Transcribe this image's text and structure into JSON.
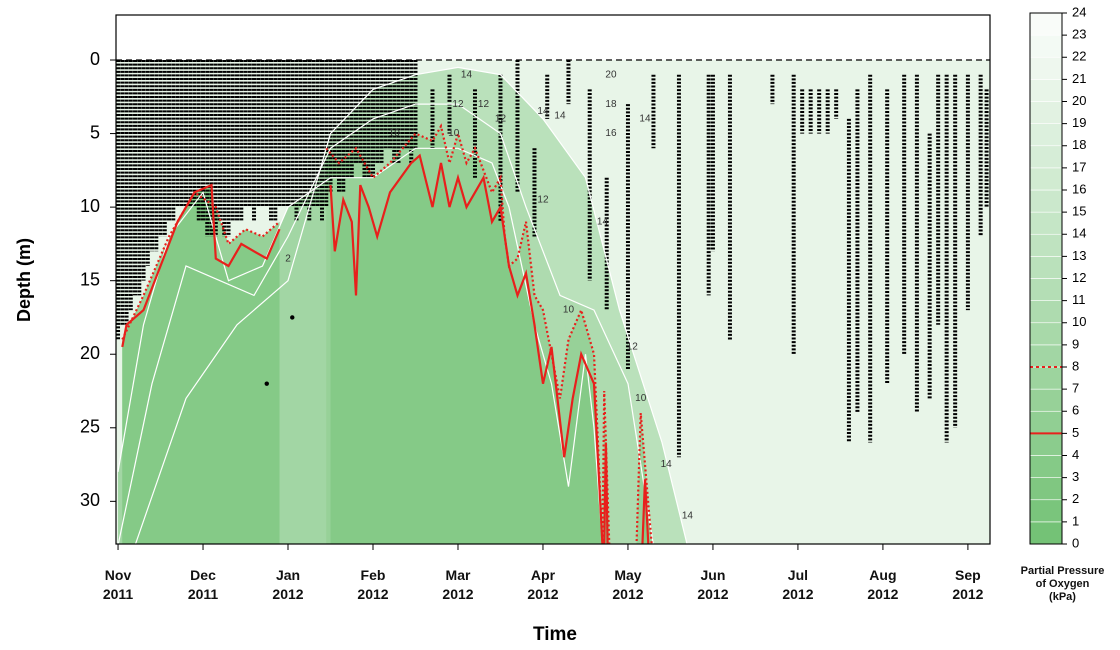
{
  "chart_data": {
    "type": "contour",
    "x_label": "Time",
    "y_label": "Depth (m)",
    "colorbar_label": "Partial Pressure\nof Oxygen\n(kPa)",
    "xlim": [
      -0.024,
      10.26
    ],
    "xticks": [
      {
        "value": 0,
        "label": "Nov\n2011"
      },
      {
        "value": 1,
        "label": "Dec\n2011"
      },
      {
        "value": 2,
        "label": "Jan\n2012"
      },
      {
        "value": 3,
        "label": "Feb\n2012"
      },
      {
        "value": 4,
        "label": "Mar\n2012"
      },
      {
        "value": 5,
        "label": "Apr\n2012"
      },
      {
        "value": 6,
        "label": "May\n2012"
      },
      {
        "value": 7,
        "label": "Jun\n2012"
      },
      {
        "value": 8,
        "label": "Jul\n2012"
      },
      {
        "value": 9,
        "label": "Aug\n2012"
      },
      {
        "value": 10,
        "label": "Sep\n2012"
      }
    ],
    "ylim": [
      -3.06,
      32.9
    ],
    "y_inverted": true,
    "yticks": [
      0,
      5,
      10,
      15,
      20,
      25,
      30
    ],
    "surface_line": 0,
    "colorbar_lim": [
      0,
      24
    ],
    "colorbar_ticks": [
      0,
      1,
      2,
      3,
      4,
      5,
      6,
      7,
      8,
      9,
      10,
      11,
      12,
      13,
      14,
      15,
      16,
      17,
      18,
      19,
      20,
      21,
      22,
      23,
      24
    ],
    "colorscale": {
      "low": "#74c276",
      "high": "#ffffff"
    },
    "background_level": 20,
    "series": [
      {
        "level": 14,
        "color": "#ffffff",
        "style": "solid",
        "x": [
          0.0,
          0.2,
          0.8,
          1.4,
          2.0,
          2.5,
          3.0,
          3.5,
          4.0,
          4.5,
          5.0,
          5.5,
          5.9,
          6.4,
          6.7
        ],
        "values": [
          33,
          33,
          23,
          18,
          15,
          5,
          2,
          1,
          0.5,
          1,
          4,
          8,
          17,
          26,
          33
        ]
      },
      {
        "level": 12,
        "color": "#ffffff",
        "style": "solid",
        "x": [
          0.0,
          0.4,
          0.8,
          1.2,
          1.6,
          2.0,
          2.5,
          3.0,
          3.5,
          4.0,
          4.5,
          4.8,
          5.2,
          5.6,
          6.0,
          6.3
        ],
        "values": [
          33,
          22,
          14,
          15,
          16,
          12,
          6,
          4,
          3,
          3,
          5,
          10,
          16,
          17,
          22,
          33
        ]
      },
      {
        "level": 10,
        "color": "#ffffff",
        "style": "solid",
        "x": [
          0.0,
          0.3,
          0.6,
          1.0,
          1.3,
          1.7,
          2.0,
          2.5,
          3.0,
          3.5,
          4.0,
          4.4,
          4.6,
          4.9,
          5.1,
          5.3,
          5.5,
          5.6,
          5.7
        ],
        "values": [
          28,
          18,
          12,
          9,
          15,
          14,
          10,
          8,
          8,
          6,
          6,
          7,
          10,
          18,
          22,
          29,
          20,
          25,
          33
        ]
      },
      {
        "level": 8,
        "color": "#e8201c",
        "style": "dotted",
        "x": [
          0.05,
          0.3,
          0.6,
          0.9,
          1.15,
          1.3,
          1.5,
          1.7,
          1.9,
          null,
          2.45,
          2.6,
          2.8,
          3.0,
          3.2,
          3.5,
          3.7,
          3.8,
          3.9,
          4.0,
          4.1,
          4.2,
          4.4,
          4.5,
          4.55,
          4.6,
          4.7,
          4.8,
          4.9,
          5.0,
          5.1,
          5.2,
          5.3,
          5.45,
          5.6,
          5.7,
          null,
          5.7,
          5.72,
          5.78,
          null,
          6.1,
          6.15,
          6.28
        ],
        "values": [
          19,
          16,
          12,
          9,
          10,
          12.5,
          11.5,
          12,
          11,
          null,
          6,
          7,
          6,
          8,
          7,
          5,
          5.5,
          4.5,
          7,
          5,
          7,
          6,
          9,
          8,
          12,
          14,
          13.5,
          11,
          16,
          17,
          20,
          23,
          19,
          17,
          20,
          33,
          null,
          33,
          22.5,
          33,
          null,
          33,
          24,
          33
        ]
      },
      {
        "level": 5,
        "color": "#e8201c",
        "style": "solid",
        "x": [
          0.05,
          0.1,
          0.3,
          0.5,
          0.7,
          0.9,
          1.1,
          1.15,
          1.3,
          1.45,
          1.6,
          1.75,
          1.9,
          null,
          2.5,
          2.55,
          2.65,
          2.75,
          2.8,
          2.85,
          2.95,
          3.05,
          3.2,
          3.45,
          3.55,
          3.7,
          3.8,
          3.9,
          4.0,
          4.1,
          4.2,
          4.3,
          4.4,
          4.5,
          4.6,
          4.7,
          4.8,
          4.9,
          5.0,
          5.1,
          5.25,
          5.35,
          5.45,
          5.6,
          5.7,
          null,
          5.72,
          5.74,
          5.76,
          null,
          6.17,
          6.2,
          6.24
        ],
        "values": [
          19.5,
          18,
          17,
          14,
          11,
          9,
          8.5,
          13.5,
          14,
          12.5,
          13,
          13.5,
          11.5,
          null,
          8.5,
          13,
          9.5,
          11,
          16,
          8.5,
          10,
          12,
          9,
          7,
          6.5,
          10,
          7,
          10,
          8,
          10,
          9,
          8,
          11,
          10,
          14,
          16,
          14.5,
          18,
          22,
          19.5,
          27,
          23,
          20,
          22,
          33,
          null,
          33,
          26,
          33,
          null,
          33,
          28.5,
          33
        ]
      }
    ],
    "contour_labels": {
      "x": [
        4.1,
        4.0,
        4.3,
        4.5,
        3.25,
        3.95,
        5.0,
        5.2,
        5.8,
        5.8,
        5.8,
        6.2,
        5.0,
        5.7,
        5.3,
        6.05,
        6.15,
        6.45,
        6.7,
        2.0
      ],
      "y": [
        1,
        3,
        3,
        4,
        5,
        5,
        3.5,
        3.8,
        1,
        3,
        5,
        4,
        9.5,
        11,
        17,
        19.5,
        23,
        27.5,
        31,
        13.5
      ],
      "values": [
        14,
        12,
        12,
        12,
        10,
        10,
        14,
        14,
        20,
        18,
        16,
        14,
        12,
        14,
        10,
        12,
        10,
        14,
        14,
        2
      ]
    },
    "detections": {
      "x": [
        0,
        0.05,
        0.1,
        0.15,
        0.2,
        0.25,
        0.3,
        0.35,
        0.4,
        0.45,
        0.5,
        0.55,
        0.6,
        0.65,
        0.7,
        0.75,
        0.8,
        0.85,
        0.9,
        0.95,
        1,
        1.05,
        1.1,
        1.15,
        1.2,
        1.25,
        1.3,
        1.35,
        1.4,
        1.45,
        1.5,
        1.55,
        1.6,
        1.65,
        1.7,
        1.75,
        1.8,
        1.85,
        1.9,
        1.95,
        2,
        2.05,
        2.1,
        2.15,
        2.2,
        2.25,
        2.3,
        2.35,
        2.4,
        2.45,
        2.5,
        2.55,
        2.6,
        2.65,
        2.7,
        2.75,
        2.8,
        2.85,
        2.9,
        2.95,
        3,
        3.05,
        3.1,
        3.15,
        3.2,
        3.25,
        3.3,
        3.35,
        3.4,
        3.45,
        3.5,
        3.7,
        3.9,
        4.2,
        4.5,
        4.7,
        4.9,
        5.05,
        5.3,
        5.55,
        5.75,
        6.0,
        6.3,
        6.6,
        6.95,
        7.0,
        7.2,
        7.7,
        7.95,
        8.05,
        8.15,
        8.25,
        8.35,
        8.45,
        8.6,
        8.7,
        8.85,
        9.05,
        9.25,
        9.4,
        9.55,
        9.65,
        9.75,
        9.85,
        10.0,
        10.15,
        10.22,
        1.75,
        2.05
      ],
      "low": [
        0,
        0,
        0,
        0,
        0,
        0,
        0,
        0,
        0,
        0,
        0,
        0,
        0,
        0,
        0,
        0,
        0,
        0,
        0,
        0,
        0,
        0,
        0,
        0,
        0,
        0,
        0,
        0,
        0,
        0,
        0,
        0,
        0,
        0,
        0,
        0,
        0,
        0,
        0,
        0,
        0,
        0,
        0,
        0,
        0,
        0,
        0,
        0,
        0,
        0,
        0,
        0,
        0,
        0,
        0,
        0,
        0,
        0,
        0,
        0,
        0,
        0,
        0,
        0,
        0,
        0,
        0,
        0,
        0,
        0,
        0,
        2,
        1,
        2,
        1,
        0,
        6,
        1,
        0,
        2,
        8,
        3,
        1,
        1,
        1,
        1,
        1,
        1,
        1,
        2,
        2,
        2,
        2,
        2,
        4,
        2,
        1,
        2,
        1,
        1,
        5,
        1,
        1,
        1,
        1,
        1,
        2,
        22,
        17.5
      ],
      "high": [
        19,
        18,
        18,
        17,
        16,
        16,
        15,
        14,
        13,
        13,
        12,
        12,
        11,
        11,
        10,
        10,
        10,
        10,
        10,
        11,
        11,
        12,
        12,
        12,
        11,
        12,
        12,
        11,
        11,
        11,
        10,
        10,
        11,
        10,
        10,
        10,
        11,
        11,
        10,
        10,
        10,
        10,
        11,
        10,
        10,
        11,
        10,
        10,
        11,
        10,
        9,
        8,
        9,
        9,
        8,
        8,
        7,
        7,
        8,
        8,
        8,
        7,
        7,
        6,
        6,
        7,
        7,
        6,
        6,
        7,
        6,
        6,
        5,
        8,
        11,
        9,
        12,
        4,
        3,
        15,
        17,
        21,
        6,
        27,
        16,
        13,
        19,
        3,
        20,
        5,
        5,
        5,
        5,
        4,
        26,
        24,
        26,
        22,
        20,
        24,
        23,
        18,
        26,
        25,
        17,
        12,
        10,
        22,
        17.5
      ]
    }
  }
}
